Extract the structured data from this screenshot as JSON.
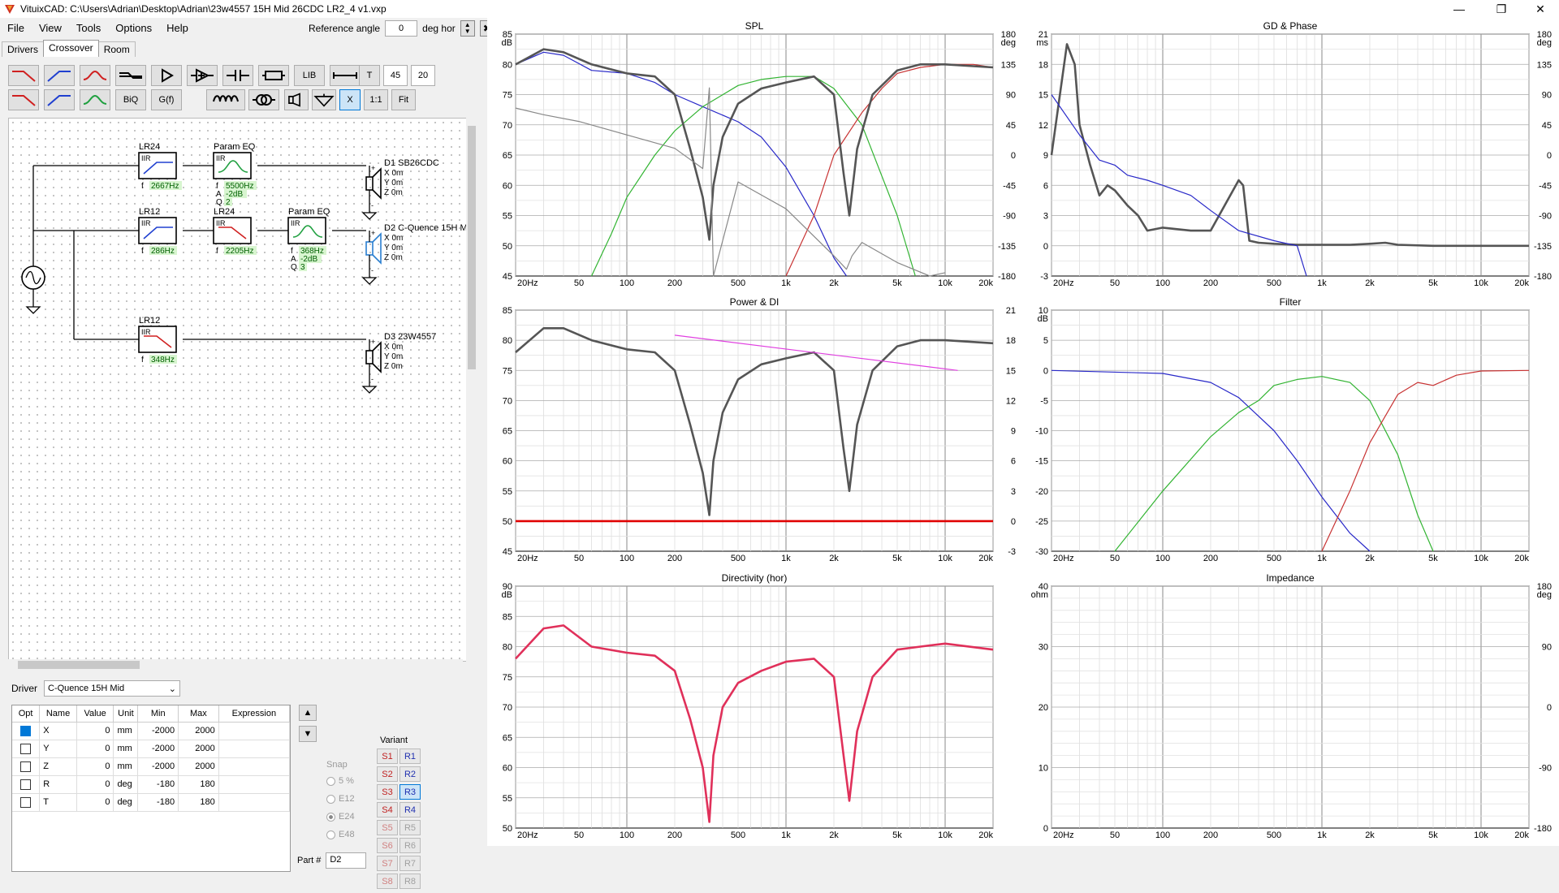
{
  "window": {
    "title": "VituixCAD: C:\\Users\\Adrian\\Desktop\\Adrian\\23w4557 15H Mid 26CDC LR2_4 v1.vxp"
  },
  "menu": [
    "File",
    "View",
    "Tools",
    "Options",
    "Help"
  ],
  "reference_angle": {
    "label": "Reference angle",
    "value": "0",
    "unit": "deg hor"
  },
  "tabs": [
    "Drivers",
    "Crossover",
    "Room"
  ],
  "toolbar": {
    "lib": "LIB",
    "t": "T",
    "val1": "45",
    "val2": "20",
    "biq": "BiQ",
    "gf": "G(f)",
    "x": "X",
    "ratio": "1:1",
    "fit": "Fit"
  },
  "schematic": {
    "blocks": [
      {
        "title": "LR24",
        "type": "IIR",
        "params": [
          [
            "f",
            "2667Hz"
          ]
        ],
        "shape": "hp"
      },
      {
        "title": "Param EQ",
        "type": "IIR",
        "params": [
          [
            "f",
            "5500Hz"
          ],
          [
            "A",
            "-2dB"
          ],
          [
            "Q",
            "2"
          ]
        ],
        "shape": "peq"
      },
      {
        "title": "LR12",
        "type": "IIR",
        "params": [
          [
            "f",
            "286Hz"
          ]
        ],
        "shape": "hp"
      },
      {
        "title": "LR24",
        "type": "IIR",
        "params": [
          [
            "f",
            "2205Hz"
          ]
        ],
        "shape": "lp"
      },
      {
        "title": "Param EQ",
        "type": "IIR",
        "params": [
          [
            "f",
            "368Hz"
          ],
          [
            "A",
            "-2dB"
          ],
          [
            "Q",
            "3"
          ]
        ],
        "shape": "peq"
      },
      {
        "title": "LR12",
        "type": "IIR",
        "params": [
          [
            "f",
            "348Hz"
          ]
        ],
        "shape": "lp"
      }
    ],
    "drivers": [
      {
        "name": "D1 SB26CDC",
        "lines": [
          "X 0m",
          "Y 0m",
          "Z 0m"
        ]
      },
      {
        "name": "D2 C-Quence 15H M",
        "lines": [
          "X 0m",
          "Y 0m",
          "Z 0m"
        ]
      },
      {
        "name": "D3 23W4557",
        "lines": [
          "X 0m",
          "Y 0m",
          "Z 0m"
        ]
      }
    ]
  },
  "driver_select": {
    "label": "Driver",
    "value": "C-Quence 15H Mid"
  },
  "param_table": {
    "headers": [
      "Opt",
      "Name",
      "Value",
      "Unit",
      "Min",
      "Max",
      "Expression"
    ],
    "rows": [
      [
        "X",
        "0",
        "mm",
        "-2000",
        "2000",
        ""
      ],
      [
        "Y",
        "0",
        "mm",
        "-2000",
        "2000",
        ""
      ],
      [
        "Z",
        "0",
        "mm",
        "-2000",
        "2000",
        ""
      ],
      [
        "R",
        "0",
        "deg",
        "-180",
        "180",
        ""
      ],
      [
        "T",
        "0",
        "deg",
        "-180",
        "180",
        ""
      ]
    ]
  },
  "snap": {
    "title": "Snap",
    "options": [
      "5 %",
      "E12",
      "E24",
      "E48"
    ],
    "selected": "E24"
  },
  "part": {
    "label": "Part #",
    "value": "D2"
  },
  "variant": {
    "title": "Variant",
    "s": [
      "S1",
      "S2",
      "S3",
      "S4",
      "S5",
      "S6",
      "S7",
      "S8"
    ],
    "r": [
      "R1",
      "R2",
      "R3",
      "R4",
      "R5",
      "R6",
      "R7",
      "R8"
    ],
    "selected": "R3"
  },
  "colors": {
    "tweeter": "#c83232",
    "mid": "#2828c8",
    "woofer": "#32b432",
    "sum": "#555555",
    "power": "#e00000",
    "di": "#e040e0",
    "directivity": "#e0305a"
  },
  "charts": [
    {
      "title": "SPL",
      "type": "line",
      "x_ticks": [
        "20Hz",
        "50",
        "100",
        "200",
        "500",
        "1k",
        "2k",
        "5k",
        "10k",
        "20k"
      ],
      "y_unit": "dB",
      "y_ticks": [
        "85",
        "80",
        "75",
        "70",
        "65",
        "60",
        "55",
        "50",
        "45"
      ],
      "y2_unit": "deg",
      "y2_ticks": [
        "180",
        "135",
        "90",
        "45",
        "0",
        "-45",
        "-90",
        "-135",
        "-180"
      ],
      "ylim": [
        45,
        85
      ],
      "y2lim": [
        -180,
        180
      ],
      "series": [
        {
          "color": "mid",
          "x": [
            20,
            30,
            40,
            60,
            100,
            150,
            200,
            300,
            500,
            700,
            1000,
            1500,
            2000,
            2400
          ],
          "y": [
            80,
            82,
            81.5,
            79,
            78.5,
            77,
            75,
            73,
            70.5,
            68,
            63,
            55,
            48,
            45
          ]
        },
        {
          "color": "woofer",
          "x": [
            60,
            80,
            100,
            150,
            200,
            300,
            500,
            700,
            1000,
            1500,
            2000,
            3000,
            5000,
            6500
          ],
          "y": [
            45,
            52,
            58,
            65,
            69,
            73,
            76.5,
            77.5,
            78,
            78,
            76,
            70,
            55,
            45
          ]
        },
        {
          "color": "tweeter",
          "x": [
            1000,
            1500,
            2000,
            3000,
            4000,
            5000,
            7000,
            10000,
            15000,
            20000
          ],
          "y": [
            45,
            55,
            65,
            72,
            76,
            78.5,
            79.5,
            80,
            80,
            79.5
          ]
        },
        {
          "color": "sum",
          "x": [
            20,
            30,
            40,
            60,
            100,
            150,
            200,
            250,
            300,
            330,
            350,
            400,
            500,
            700,
            1000,
            1500,
            2000,
            2300,
            2500,
            2800,
            3500,
            5000,
            7000,
            10000,
            20000
          ],
          "y": [
            80,
            82.5,
            82,
            80,
            78.5,
            78,
            75,
            66,
            58,
            51,
            60,
            68,
            73.5,
            76,
            77,
            78,
            75,
            62,
            55,
            66,
            75,
            79,
            80,
            80,
            79.5
          ]
        },
        {
          "color": "phase",
          "x": [
            20,
            30,
            50,
            100,
            200,
            300,
            330,
            350,
            500,
            1000,
            2000,
            2400,
            2600,
            3000,
            5000,
            8000,
            10000
          ],
          "y2": [
            70,
            60,
            50,
            30,
            10,
            -20,
            100,
            -180,
            -40,
            -80,
            -150,
            -170,
            -150,
            -130,
            -160,
            -180,
            -175
          ]
        }
      ]
    },
    {
      "title": "GD & Phase",
      "type": "line",
      "x_ticks": [
        "20Hz",
        "50",
        "100",
        "200",
        "500",
        "1k",
        "2k",
        "5k",
        "10k",
        "20k"
      ],
      "y_unit": "ms",
      "y_ticks": [
        "21",
        "18",
        "15",
        "12",
        "9",
        "6",
        "3",
        "0",
        "-3"
      ],
      "y2_unit": "deg",
      "y2_ticks": [
        "180",
        "135",
        "90",
        "45",
        "0",
        "-45",
        "-90",
        "-135",
        "-180"
      ],
      "ylim": [
        -3,
        21
      ],
      "y2lim": [
        -180,
        180
      ],
      "series": [
        {
          "color": "sum",
          "x": [
            20,
            25,
            28,
            30,
            35,
            40,
            45,
            50,
            60,
            70,
            80,
            100,
            150,
            200,
            300,
            320,
            350,
            400,
            500,
            700,
            1000,
            1500,
            2000,
            2500,
            3000,
            5000,
            10000,
            20000
          ],
          "y": [
            9,
            20,
            18,
            12,
            8,
            5,
            6,
            5.5,
            4,
            3,
            1.5,
            1.8,
            1.5,
            1.5,
            6.5,
            6,
            0.5,
            0.3,
            0.2,
            0.1,
            0.1,
            0.1,
            0.2,
            0.3,
            0.1,
            0,
            0,
            0
          ]
        },
        {
          "color": "mid",
          "x": [
            20,
            30,
            40,
            50,
            60,
            80,
            100,
            150,
            200,
            300,
            500,
            700,
            800
          ],
          "y": [
            15,
            11,
            8.5,
            8,
            7,
            6.5,
            6,
            5,
            3.5,
            1.5,
            0.5,
            0,
            -3
          ]
        }
      ]
    },
    {
      "title": "Power & DI",
      "type": "line",
      "x_ticks": [
        "20Hz",
        "50",
        "100",
        "200",
        "500",
        "1k",
        "2k",
        "5k",
        "10k",
        "20k"
      ],
      "y_ticks": [
        "85",
        "80",
        "75",
        "70",
        "65",
        "60",
        "55",
        "50",
        "45"
      ],
      "y2_ticks": [
        "21",
        "18",
        "15",
        "12",
        "9",
        "6",
        "3",
        "0",
        "-3"
      ],
      "ylim": [
        45,
        85
      ],
      "y2lim": [
        -3,
        21
      ],
      "series": [
        {
          "color": "sum",
          "x": [
            20,
            30,
            40,
            60,
            100,
            150,
            200,
            250,
            300,
            330,
            350,
            400,
            500,
            700,
            1000,
            1500,
            2000,
            2300,
            2500,
            2800,
            3500,
            5000,
            7000,
            10000,
            20000
          ],
          "y": [
            78,
            82,
            82,
            80,
            78.5,
            78,
            75,
            66,
            58,
            51,
            60,
            68,
            73.5,
            76,
            77,
            78,
            75,
            62,
            55,
            66,
            75,
            79,
            80,
            80,
            79.5
          ]
        },
        {
          "color": "power",
          "x": [
            20,
            20000
          ],
          "y": [
            50,
            50
          ]
        },
        {
          "color": "di",
          "x": [
            200,
            12000
          ],
          "y2": [
            18.5,
            15
          ]
        }
      ]
    },
    {
      "title": "Filter",
      "type": "line",
      "x_ticks": [
        "20Hz",
        "50",
        "100",
        "200",
        "500",
        "1k",
        "2k",
        "5k",
        "10k",
        "20k"
      ],
      "y_unit": "dB",
      "y_ticks": [
        "10",
        "5",
        "0",
        "-5",
        "-10",
        "-15",
        "-20",
        "-25",
        "-30"
      ],
      "ylim": [
        -30,
        10
      ],
      "series": [
        {
          "color": "mid",
          "x": [
            20,
            100,
            200,
            300,
            500,
            700,
            1000,
            1500,
            2000
          ],
          "y": [
            0,
            -0.5,
            -2,
            -4.5,
            -10,
            -15,
            -21,
            -27,
            -30
          ]
        },
        {
          "color": "woofer",
          "x": [
            50,
            100,
            200,
            300,
            400,
            500,
            700,
            1000,
            1500,
            2000,
            3000,
            4000,
            5000
          ],
          "y": [
            -30,
            -20,
            -11,
            -7,
            -5,
            -2.5,
            -1.5,
            -1,
            -2,
            -5,
            -14,
            -24,
            -30
          ]
        },
        {
          "color": "tweeter",
          "x": [
            1000,
            1500,
            2000,
            3000,
            4000,
            5000,
            7000,
            10000,
            20000
          ],
          "y": [
            -30,
            -20,
            -12,
            -4,
            -2,
            -2.5,
            -0.8,
            -0.1,
            0
          ]
        }
      ]
    },
    {
      "title": "Directivity (hor)",
      "type": "line",
      "x_ticks": [
        "20Hz",
        "50",
        "100",
        "200",
        "500",
        "1k",
        "2k",
        "5k",
        "10k",
        "20k"
      ],
      "y_unit": "dB",
      "y_ticks": [
        "90",
        "85",
        "80",
        "75",
        "70",
        "65",
        "60",
        "55",
        "50"
      ],
      "ylim": [
        50,
        90
      ],
      "series": [
        {
          "color": "directivity",
          "x": [
            20,
            30,
            40,
            60,
            100,
            150,
            200,
            250,
            300,
            330,
            350,
            400,
            500,
            700,
            1000,
            1500,
            2000,
            2300,
            2500,
            2800,
            3500,
            5000,
            7000,
            10000,
            20000
          ],
          "y": [
            78,
            83,
            83.5,
            80,
            79,
            78.5,
            76,
            68,
            60,
            51,
            62,
            70,
            74,
            76,
            77.5,
            78,
            75,
            62,
            54.5,
            66,
            75,
            79.5,
            80,
            80.5,
            79.5
          ]
        }
      ]
    },
    {
      "title": "Impedance",
      "type": "line",
      "x_ticks": [
        "20Hz",
        "50",
        "100",
        "200",
        "500",
        "1k",
        "2k",
        "5k",
        "10k",
        "20k"
      ],
      "y_unit": "ohm",
      "y_ticks": [
        "40",
        "30",
        "20",
        "10",
        "0"
      ],
      "y2_unit": "deg",
      "y2_ticks": [
        "180",
        "90",
        "0",
        "-90",
        "-180"
      ],
      "ylim": [
        0,
        40
      ],
      "y2lim": [
        -180,
        180
      ],
      "series": []
    }
  ]
}
